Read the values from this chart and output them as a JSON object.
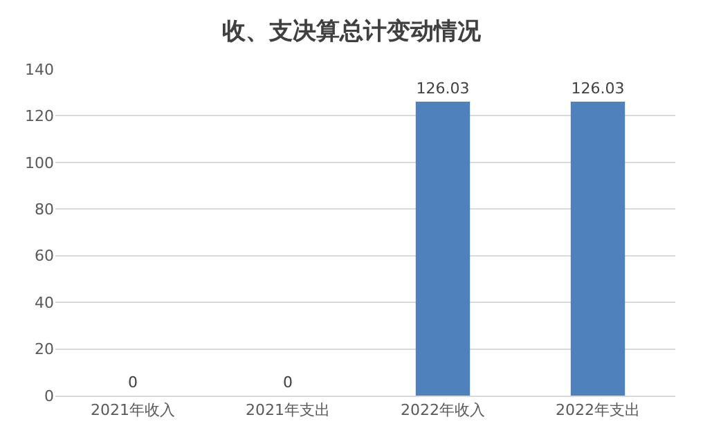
{
  "chart_data": {
    "type": "bar",
    "title": "收、支决算总计变动情况",
    "categories": [
      "2021年收入",
      "2021年支出",
      "2022年收入",
      "2022年支出"
    ],
    "values": [
      0,
      0,
      126.03,
      126.03
    ],
    "color": "#4f81bd",
    "ylim": [
      0,
      140
    ],
    "yticks": [
      0,
      20,
      40,
      60,
      80,
      100,
      120,
      140
    ],
    "grid": "y",
    "data_labels": true,
    "legend": false
  }
}
